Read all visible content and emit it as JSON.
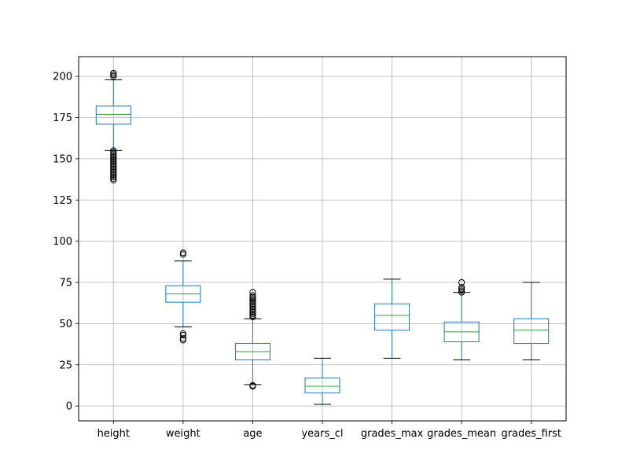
{
  "chart_data": {
    "type": "box",
    "title": "",
    "xlabel": "",
    "ylabel": "",
    "grid": true,
    "ylim": [
      -9,
      212
    ],
    "yticks": [
      0,
      25,
      50,
      75,
      100,
      125,
      150,
      175,
      200
    ],
    "colors": {
      "box": "#1f77b4",
      "median": "#2ca02c",
      "whisker": "#1f77b4",
      "cap": "#000000",
      "grid": "#b0b0b0",
      "flier": "#000000"
    },
    "boxes": [
      {
        "label": "height",
        "whislo": 155,
        "q1": 171,
        "med": 177,
        "q3": 182,
        "whishi": 198,
        "fliers": [
          137,
          138,
          139,
          140,
          141,
          142,
          143,
          144,
          145,
          146,
          147,
          148,
          149,
          150,
          151,
          152,
          153,
          154,
          155,
          200,
          201,
          202
        ]
      },
      {
        "label": "weight",
        "whislo": 48,
        "q1": 63,
        "med": 68,
        "q3": 73,
        "whishi": 88,
        "fliers": [
          40,
          41,
          43,
          44,
          92,
          93
        ]
      },
      {
        "label": "age",
        "whislo": 13,
        "q1": 28,
        "med": 33,
        "q3": 38,
        "whishi": 53,
        "fliers": [
          12,
          12.5,
          54,
          55,
          56,
          57,
          58,
          59,
          60,
          61,
          62,
          63,
          64,
          65,
          66,
          67,
          69
        ]
      },
      {
        "label": "years_cl",
        "whislo": 1,
        "q1": 8,
        "med": 12,
        "q3": 17,
        "whishi": 29,
        "fliers": []
      },
      {
        "label": "grades_max",
        "whislo": 29,
        "q1": 46,
        "med": 55,
        "q3": 62,
        "whishi": 77,
        "fliers": []
      },
      {
        "label": "grades_mean",
        "whislo": 28,
        "q1": 39,
        "med": 45,
        "q3": 51,
        "whishi": 69,
        "fliers": [
          69,
          70,
          71,
          72,
          75
        ]
      },
      {
        "label": "grades_first",
        "whislo": 28,
        "q1": 38,
        "med": 46,
        "q3": 53,
        "whishi": 75,
        "fliers": []
      }
    ]
  }
}
